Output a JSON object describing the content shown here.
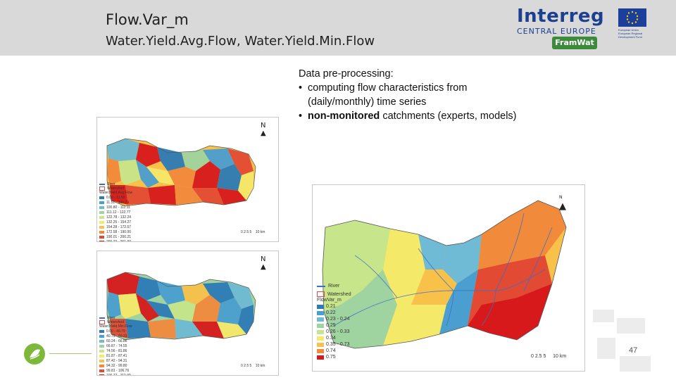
{
  "slide": {
    "title": "Flow.Var_m",
    "subtitle": "Water.Yield.Avg.Flow, Water.Yield.Min.Flow",
    "page_number": "47"
  },
  "logo": {
    "main": "Interreg",
    "sub": "CENTRAL EUROPE",
    "eu_text": "European Union European Regional Development Fund",
    "project": "FramWat"
  },
  "text_block": {
    "heading": "Data pre-processing:",
    "bullet_char": "•",
    "bullet1": "computing flow characteristics from (daily/monthly) time series",
    "bullet2_bold": "non-monitored",
    "bullet2_rest": " catchments (experts, models)"
  },
  "map_main": {
    "legend": {
      "river": "River",
      "watershed": "Watershed",
      "title": "FlowVar_m",
      "items": [
        {
          "label": "0.21",
          "color": "#2c7bb6"
        },
        {
          "label": "0.22",
          "color": "#4a9fd0"
        },
        {
          "label": "0.23 - 0.24",
          "color": "#6fbad4"
        },
        {
          "label": "0.25",
          "color": "#9fd3a0"
        },
        {
          "label": "0.26 - 0.33",
          "color": "#c7e58a"
        },
        {
          "label": "0.34",
          "color": "#f5e96a"
        },
        {
          "label": "0.35 - 0.73",
          "color": "#f7c14a"
        },
        {
          "label": "0.74",
          "color": "#f28a3c"
        },
        {
          "label": "0.75",
          "color": "#d7191c"
        }
      ]
    },
    "north": "N",
    "scale": "0 2.5 5",
    "scale_end": "10 km"
  },
  "map_small_top": {
    "legend": {
      "river": "River",
      "watershed": "Watershed",
      "title": "Water.Yield.Avg.Flow",
      "items": [
        {
          "label": "0.00 - 11.50",
          "color": "#2c7bb6"
        },
        {
          "label": "11.51 - 100.79",
          "color": "#4a9fd0"
        },
        {
          "label": "100.80 - 111.11",
          "color": "#6fbad4"
        },
        {
          "label": "111.12 - 122.77",
          "color": "#9fd3a0"
        },
        {
          "label": "122.78 - 132.24",
          "color": "#c7e58a"
        },
        {
          "label": "132.25 - 154.27",
          "color": "#f5e96a"
        },
        {
          "label": "154.28 - 172.57",
          "color": "#f7c14a"
        },
        {
          "label": "172.58 - 190.00",
          "color": "#f28a3c"
        },
        {
          "label": "190.01 - 200.21",
          "color": "#e34a33"
        },
        {
          "label": "200.22 - 261.00",
          "color": "#d7191c"
        }
      ]
    },
    "north": "N",
    "scale": "0 2.5 5",
    "scale_end": "10 km"
  },
  "map_small_bottom": {
    "legend": {
      "river": "River",
      "watershed": "Watershed",
      "title": "Water.Yield.Min.Flow",
      "items": [
        {
          "label": "0.00 - 40.79",
          "color": "#2c7bb6"
        },
        {
          "label": "40.79 - 60.23",
          "color": "#4a9fd0"
        },
        {
          "label": "60.24 - 66.86",
          "color": "#6fbad4"
        },
        {
          "label": "66.87 - 74.55",
          "color": "#9fd3a0"
        },
        {
          "label": "74.56 - 81.86",
          "color": "#c7e58a"
        },
        {
          "label": "81.87 - 87.41",
          "color": "#f5e96a"
        },
        {
          "label": "87.42 - 94.31",
          "color": "#f7c14a"
        },
        {
          "label": "94.32 - 99.80",
          "color": "#f28a3c"
        },
        {
          "label": "99.81 - 106.76",
          "color": "#e34a33"
        },
        {
          "label": "106.77 - 112.00",
          "color": "#d7191c"
        }
      ]
    },
    "north": "N",
    "scale": "0 2.5 5",
    "scale_end": "10 km"
  }
}
